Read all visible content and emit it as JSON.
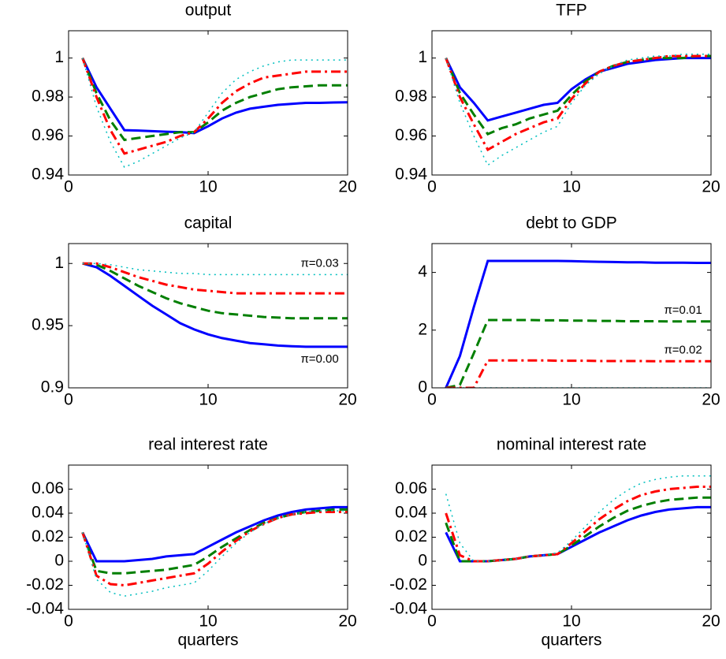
{
  "chart_data": [
    {
      "type": "line",
      "title": "output",
      "x": [
        1,
        2,
        3,
        4,
        5,
        6,
        7,
        8,
        9,
        10,
        11,
        12,
        13,
        14,
        15,
        16,
        17,
        18,
        19,
        20
      ],
      "xlim": [
        0,
        20
      ],
      "xticks": [
        0,
        10,
        20
      ],
      "ylim": [
        0.94,
        1.014
      ],
      "yticks": [
        0.94,
        0.96,
        0.98,
        1
      ],
      "series": [
        {
          "color": "#0000ff",
          "dash": "solid",
          "values": [
            1,
            0.985,
            0.974,
            0.963,
            0.9628,
            0.9625,
            0.9622,
            0.962,
            0.9615,
            0.965,
            0.969,
            0.972,
            0.974,
            0.975,
            0.976,
            0.9765,
            0.977,
            0.977,
            0.9772,
            0.9773
          ]
        },
        {
          "color": "#007f00",
          "dash": "dashed",
          "values": [
            1,
            0.982,
            0.968,
            0.958,
            0.959,
            0.96,
            0.961,
            0.962,
            0.962,
            0.967,
            0.973,
            0.977,
            0.98,
            0.982,
            0.984,
            0.985,
            0.9855,
            0.986,
            0.986,
            0.986
          ]
        },
        {
          "color": "#ff0000",
          "dash": "dashdot",
          "values": [
            1,
            0.98,
            0.963,
            0.951,
            0.953,
            0.955,
            0.957,
            0.96,
            0.962,
            0.969,
            0.977,
            0.983,
            0.987,
            0.99,
            0.991,
            0.992,
            0.993,
            0.993,
            0.993,
            0.993
          ]
        },
        {
          "color": "#00bfbf",
          "dash": "dotted",
          "values": [
            1,
            0.975,
            0.957,
            0.944,
            0.947,
            0.951,
            0.955,
            0.959,
            0.962,
            0.972,
            0.982,
            0.989,
            0.993,
            0.996,
            0.998,
            0.999,
            0.999,
            0.999,
            0.999,
            0.999
          ]
        }
      ]
    },
    {
      "type": "line",
      "title": "TFP",
      "x": [
        1,
        2,
        3,
        4,
        5,
        6,
        7,
        8,
        9,
        10,
        11,
        12,
        13,
        14,
        15,
        16,
        17,
        18,
        19,
        20
      ],
      "xlim": [
        0,
        20
      ],
      "xticks": [
        0,
        10,
        20
      ],
      "ylim": [
        0.94,
        1.014
      ],
      "yticks": [
        0.94,
        0.96,
        0.98,
        1
      ],
      "series": [
        {
          "color": "#0000ff",
          "dash": "solid",
          "values": [
            1,
            0.985,
            0.977,
            0.968,
            0.97,
            0.972,
            0.974,
            0.976,
            0.977,
            0.984,
            0.989,
            0.993,
            0.995,
            0.997,
            0.998,
            0.999,
            0.9995,
            1,
            1,
            1
          ]
        },
        {
          "color": "#007f00",
          "dash": "dashed",
          "values": [
            1,
            0.982,
            0.971,
            0.961,
            0.964,
            0.966,
            0.969,
            0.971,
            0.973,
            0.981,
            0.988,
            0.993,
            0.996,
            0.998,
            0.999,
            1,
            1,
            1,
            1.001,
            1.001
          ]
        },
        {
          "color": "#ff0000",
          "dash": "dashdot",
          "values": [
            1,
            0.98,
            0.966,
            0.953,
            0.957,
            0.961,
            0.964,
            0.967,
            0.969,
            0.979,
            0.987,
            0.993,
            0.996,
            0.998,
            0.999,
            1,
            1.001,
            1.001,
            1.001,
            1.001
          ]
        },
        {
          "color": "#00bfbf",
          "dash": "dotted",
          "values": [
            1,
            0.977,
            0.96,
            0.945,
            0.95,
            0.954,
            0.958,
            0.962,
            0.965,
            0.977,
            0.986,
            0.992,
            0.996,
            0.999,
            1,
            1.001,
            1.001,
            1.002,
            1.002,
            1.002
          ]
        }
      ]
    },
    {
      "type": "line",
      "title": "capital",
      "x": [
        1,
        2,
        3,
        4,
        5,
        6,
        7,
        8,
        9,
        10,
        11,
        12,
        13,
        14,
        15,
        16,
        17,
        18,
        19,
        20
      ],
      "xlim": [
        0,
        20
      ],
      "xticks": [
        0,
        10,
        20
      ],
      "ylim": [
        0.9,
        1.016
      ],
      "yticks": [
        0.9,
        0.95,
        1
      ],
      "series": [
        {
          "color": "#0000ff",
          "dash": "solid",
          "values": [
            1,
            0.997,
            0.99,
            0.982,
            0.974,
            0.966,
            0.959,
            0.952,
            0.947,
            0.943,
            0.94,
            0.938,
            0.936,
            0.935,
            0.934,
            0.9335,
            0.933,
            0.933,
            0.933,
            0.933
          ]
        },
        {
          "color": "#007f00",
          "dash": "dashed",
          "values": [
            1,
            0.999,
            0.994,
            0.988,
            0.982,
            0.977,
            0.972,
            0.968,
            0.965,
            0.962,
            0.96,
            0.959,
            0.958,
            0.957,
            0.9565,
            0.956,
            0.956,
            0.956,
            0.956,
            0.956
          ]
        },
        {
          "color": "#ff0000",
          "dash": "dashdot",
          "values": [
            1,
            1,
            0.997,
            0.993,
            0.989,
            0.986,
            0.983,
            0.981,
            0.979,
            0.978,
            0.977,
            0.976,
            0.976,
            0.976,
            0.976,
            0.976,
            0.976,
            0.976,
            0.976,
            0.976
          ]
        },
        {
          "color": "#00bfbf",
          "dash": "dotted",
          "values": [
            1,
            1,
            0.999,
            0.997,
            0.995,
            0.994,
            0.993,
            0.992,
            0.992,
            0.991,
            0.991,
            0.991,
            0.991,
            0.991,
            0.991,
            0.991,
            0.991,
            0.991,
            0.991,
            0.991
          ]
        }
      ],
      "annotations": [
        {
          "text": "π=0.03",
          "series": 3,
          "placement": "above"
        },
        {
          "text": "π=0.00",
          "series": 0,
          "placement": "below"
        }
      ]
    },
    {
      "type": "line",
      "title": "debt to GDP",
      "x": [
        1,
        2,
        3,
        4,
        5,
        6,
        7,
        8,
        9,
        10,
        11,
        12,
        13,
        14,
        15,
        16,
        17,
        18,
        19,
        20
      ],
      "xlim": [
        0,
        20
      ],
      "xticks": [
        0,
        10,
        20
      ],
      "ylim": [
        0,
        5
      ],
      "yticks": [
        0,
        2,
        4
      ],
      "series": [
        {
          "color": "#0000ff",
          "dash": "solid",
          "values": [
            0,
            1.1,
            2.8,
            4.4,
            4.4,
            4.4,
            4.4,
            4.4,
            4.4,
            4.39,
            4.38,
            4.37,
            4.36,
            4.35,
            4.35,
            4.34,
            4.34,
            4.34,
            4.33,
            4.33
          ]
        },
        {
          "color": "#007f00",
          "dash": "dashed",
          "values": [
            0,
            0.1,
            1.2,
            2.35,
            2.35,
            2.35,
            2.35,
            2.34,
            2.34,
            2.33,
            2.33,
            2.32,
            2.32,
            2.31,
            2.31,
            2.31,
            2.3,
            2.3,
            2.3,
            2.3
          ]
        },
        {
          "color": "#ff0000",
          "dash": "dashdot",
          "values": [
            0,
            0,
            0,
            0.95,
            0.95,
            0.95,
            0.95,
            0.95,
            0.94,
            0.94,
            0.94,
            0.93,
            0.93,
            0.93,
            0.93,
            0.92,
            0.92,
            0.92,
            0.92,
            0.92
          ]
        },
        {
          "color": "#00bfbf",
          "dash": "dotted",
          "values": [
            0,
            0,
            0,
            0,
            0,
            0,
            0,
            0,
            0,
            0,
            0,
            0,
            0,
            0,
            0,
            0,
            0,
            0,
            0,
            0
          ]
        }
      ],
      "annotations": [
        {
          "text": "π=0.01",
          "series": 1,
          "placement": "above"
        },
        {
          "text": "π=0.02",
          "series": 2,
          "placement": "above"
        }
      ]
    },
    {
      "type": "line",
      "title": "real interest rate",
      "xlabel": "quarters",
      "x": [
        1,
        2,
        3,
        4,
        5,
        6,
        7,
        8,
        9,
        10,
        11,
        12,
        13,
        14,
        15,
        16,
        17,
        18,
        19,
        20
      ],
      "xlim": [
        0,
        20
      ],
      "xticks": [
        0,
        10,
        20
      ],
      "ylim": [
        -0.04,
        0.08
      ],
      "yticks": [
        -0.04,
        -0.02,
        0,
        0.02,
        0.04,
        0.06
      ],
      "series": [
        {
          "color": "#0000ff",
          "dash": "solid",
          "values": [
            0.024,
            0,
            0,
            0,
            0.001,
            0.002,
            0.004,
            0.005,
            0.006,
            0.012,
            0.018,
            0.024,
            0.029,
            0.034,
            0.038,
            0.041,
            0.043,
            0.044,
            0.045,
            0.045
          ]
        },
        {
          "color": "#007f00",
          "dash": "dashed",
          "values": [
            0.024,
            -0.008,
            -0.01,
            -0.01,
            -0.009,
            -0.008,
            -0.007,
            -0.005,
            -0.003,
            0.004,
            0.012,
            0.019,
            0.026,
            0.032,
            0.036,
            0.039,
            0.041,
            0.042,
            0.043,
            0.043
          ]
        },
        {
          "color": "#ff0000",
          "dash": "dashdot",
          "values": [
            0.024,
            -0.012,
            -0.019,
            -0.02,
            -0.018,
            -0.016,
            -0.014,
            -0.012,
            -0.01,
            -0.002,
            0.008,
            0.017,
            0.025,
            0.031,
            0.036,
            0.039,
            0.04,
            0.041,
            0.041,
            0.041
          ]
        },
        {
          "color": "#00bfbf",
          "dash": "dotted",
          "values": [
            0.024,
            -0.015,
            -0.026,
            -0.029,
            -0.027,
            -0.025,
            -0.022,
            -0.02,
            -0.018,
            -0.008,
            0.004,
            0.015,
            0.024,
            0.031,
            0.036,
            0.039,
            0.041,
            0.042,
            0.042,
            0.042
          ]
        }
      ]
    },
    {
      "type": "line",
      "title": "nominal interest rate",
      "xlabel": "quarters",
      "x": [
        1,
        2,
        3,
        4,
        5,
        6,
        7,
        8,
        9,
        10,
        11,
        12,
        13,
        14,
        15,
        16,
        17,
        18,
        19,
        20
      ],
      "xlim": [
        0,
        20
      ],
      "xticks": [
        0,
        10,
        20
      ],
      "ylim": [
        -0.04,
        0.08
      ],
      "yticks": [
        -0.04,
        -0.02,
        0,
        0.02,
        0.04,
        0.06
      ],
      "series": [
        {
          "color": "#0000ff",
          "dash": "solid",
          "values": [
            0.024,
            0,
            0,
            0,
            0.001,
            0.002,
            0.004,
            0.005,
            0.006,
            0.012,
            0.018,
            0.024,
            0.029,
            0.034,
            0.038,
            0.041,
            0.043,
            0.044,
            0.045,
            0.045
          ]
        },
        {
          "color": "#007f00",
          "dash": "dashed",
          "values": [
            0.032,
            0,
            0,
            0,
            0.001,
            0.002,
            0.004,
            0.005,
            0.006,
            0.013,
            0.021,
            0.029,
            0.036,
            0.042,
            0.046,
            0.049,
            0.051,
            0.052,
            0.053,
            0.053
          ]
        },
        {
          "color": "#ff0000",
          "dash": "dashdot",
          "values": [
            0.04,
            0.005,
            0,
            0,
            0.001,
            0.002,
            0.004,
            0.005,
            0.006,
            0.015,
            0.025,
            0.035,
            0.043,
            0.05,
            0.055,
            0.058,
            0.06,
            0.061,
            0.062,
            0.062
          ]
        },
        {
          "color": "#00bfbf",
          "dash": "dotted",
          "values": [
            0.056,
            0.015,
            0,
            0,
            0.001,
            0.002,
            0.004,
            0.005,
            0.007,
            0.017,
            0.029,
            0.041,
            0.051,
            0.059,
            0.065,
            0.068,
            0.07,
            0.071,
            0.071,
            0.071
          ]
        }
      ]
    }
  ]
}
